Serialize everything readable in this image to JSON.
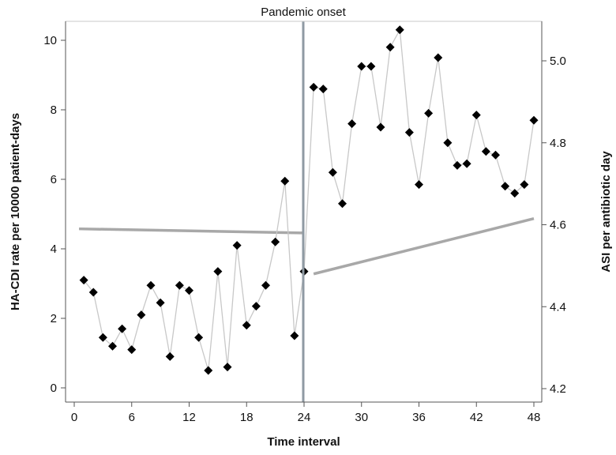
{
  "chart_data": {
    "type": "scatter",
    "title": "",
    "xlabel": "Time interval",
    "ylabel": "HA-CDI rate per 10000 patient-days",
    "y2label": "ASI per antibiotic day",
    "annotation": "Pandemic onset",
    "intervention_x": 24,
    "xlim": [
      0,
      48
    ],
    "ylim": [
      0,
      10.2
    ],
    "y2lim": [
      4.2,
      5.1
    ],
    "xticks": [
      0,
      6,
      12,
      18,
      24,
      30,
      36,
      42,
      48
    ],
    "yticks": [
      0,
      2,
      4,
      6,
      8,
      10
    ],
    "y2ticks": [
      4.2,
      4.4,
      4.6,
      4.8,
      5.0
    ],
    "y2ticklabels": [
      "4.2",
      "4.4",
      "4.6",
      "4.8",
      "5.0"
    ],
    "grid": false,
    "legend": "none",
    "series": [
      {
        "axis": "left",
        "style": "points-connected",
        "marker_color": "#000000",
        "line_color": "#c8c8c8",
        "x": [
          1,
          2,
          3,
          4,
          5,
          6,
          7,
          8,
          9,
          10,
          11,
          12,
          13,
          14,
          15,
          16,
          17,
          18,
          19,
          20,
          21,
          22,
          23,
          24,
          25,
          26,
          27,
          28,
          29,
          30,
          31,
          32,
          33,
          34,
          35,
          36,
          37,
          38,
          39,
          40,
          41,
          42,
          43,
          44,
          45,
          46,
          47,
          48
        ],
        "values": [
          3.1,
          2.75,
          1.45,
          1.2,
          1.7,
          1.1,
          2.1,
          2.95,
          2.45,
          0.9,
          2.95,
          2.8,
          1.45,
          0.5,
          3.35,
          0.6,
          4.1,
          1.8,
          2.35,
          2.95,
          4.2,
          5.95,
          1.5,
          3.35,
          8.65,
          8.6,
          6.2,
          5.3,
          7.6,
          9.25,
          9.25,
          7.5,
          9.8,
          10.3,
          7.35,
          5.85,
          7.9,
          9.5,
          7.05,
          6.4,
          6.45,
          7.85,
          6.8,
          6.7,
          5.8,
          5.6,
          5.85,
          7.7
        ]
      },
      {
        "axis": "right",
        "style": "segmented-trend",
        "line_color": "#a8a8a8",
        "segments": [
          {
            "x": [
              0.5,
              24
            ],
            "values": [
              4.59,
              4.58
            ]
          },
          {
            "x": [
              25,
              48
            ],
            "values": [
              4.48,
              4.615
            ]
          }
        ]
      }
    ]
  }
}
